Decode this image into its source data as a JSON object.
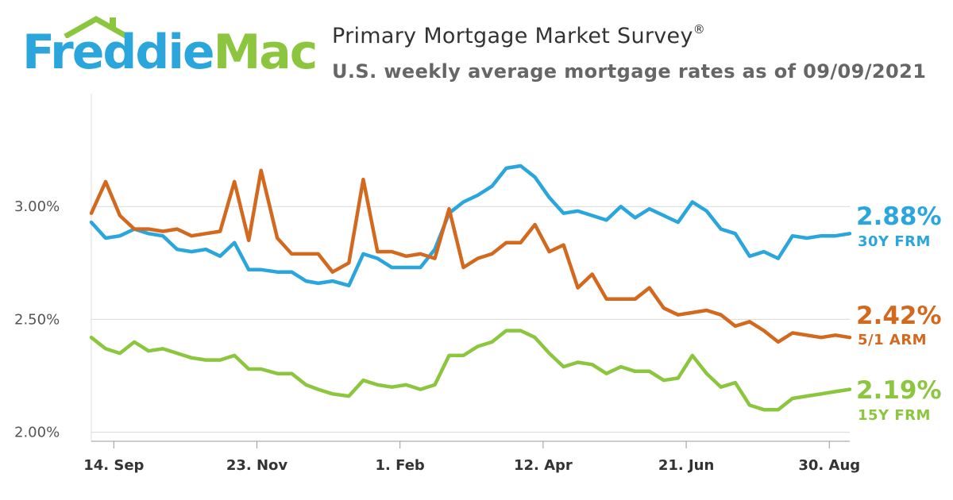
{
  "header": {
    "logo_part1": "Freddie",
    "logo_part2": "Mac",
    "title": "Primary Mortgage Market Survey",
    "title_mark": "®",
    "subtitle": "U.S. weekly average mortgage rates as of 09/09/2021"
  },
  "colors": {
    "frm30": "#2aa6dd",
    "arm51": "#d2691e",
    "frm15": "#8cc63f",
    "grid": "#d9d9d9",
    "axis": "#999999"
  },
  "chart_data": {
    "type": "line",
    "title": "Primary Mortgage Market Survey",
    "subtitle": "U.S. weekly average mortgage rates as of 09/09/2021",
    "xlabel": "",
    "ylabel": "",
    "ylim": [
      1.96,
      3.5
    ],
    "yticks": [
      2.0,
      2.5,
      3.0
    ],
    "ytick_labels": [
      "2.00%",
      "2.50%",
      "3.00%"
    ],
    "grid": true,
    "legend": "right end labels",
    "x_range": [
      "2020-09-03",
      "2021-09-09"
    ],
    "xticks": [
      {
        "date": "2020-09-14",
        "label": "14. Sep"
      },
      {
        "date": "2020-11-23",
        "label": "23. Nov"
      },
      {
        "date": "2021-02-01",
        "label": "1. Feb"
      },
      {
        "date": "2021-04-12",
        "label": "12. Apr"
      },
      {
        "date": "2021-06-21",
        "label": "21. Jun"
      },
      {
        "date": "2021-08-30",
        "label": "30. Aug"
      }
    ],
    "x": [
      "2020-09-03",
      "2020-09-10",
      "2020-09-17",
      "2020-09-24",
      "2020-10-01",
      "2020-10-08",
      "2020-10-15",
      "2020-10-22",
      "2020-10-29",
      "2020-11-05",
      "2020-11-12",
      "2020-11-19",
      "2020-11-25",
      "2020-12-03",
      "2020-12-10",
      "2020-12-17",
      "2020-12-23",
      "2020-12-30",
      "2021-01-07",
      "2021-01-14",
      "2021-01-21",
      "2021-01-28",
      "2021-02-04",
      "2021-02-11",
      "2021-02-18",
      "2021-02-25",
      "2021-03-04",
      "2021-03-11",
      "2021-03-18",
      "2021-03-25",
      "2021-04-01",
      "2021-04-08",
      "2021-04-15",
      "2021-04-22",
      "2021-04-29",
      "2021-05-06",
      "2021-05-13",
      "2021-05-20",
      "2021-05-27",
      "2021-06-03",
      "2021-06-10",
      "2021-06-17",
      "2021-06-24",
      "2021-07-01",
      "2021-07-08",
      "2021-07-15",
      "2021-07-22",
      "2021-07-29",
      "2021-08-05",
      "2021-08-12",
      "2021-08-19",
      "2021-08-26",
      "2021-09-02",
      "2021-09-09"
    ],
    "series": [
      {
        "name": "30Y FRM",
        "key": "frm30",
        "end_label": "2.88%",
        "values": [
          2.93,
          2.86,
          2.87,
          2.9,
          2.88,
          2.87,
          2.81,
          2.8,
          2.81,
          2.78,
          2.84,
          2.72,
          2.72,
          2.71,
          2.71,
          2.67,
          2.66,
          2.67,
          2.65,
          2.79,
          2.77,
          2.73,
          2.73,
          2.73,
          2.81,
          2.97,
          3.02,
          3.05,
          3.09,
          3.17,
          3.18,
          3.13,
          3.04,
          2.97,
          2.98,
          2.96,
          2.94,
          3.0,
          2.95,
          2.99,
          2.96,
          2.93,
          3.02,
          2.98,
          2.9,
          2.88,
          2.78,
          2.8,
          2.77,
          2.87,
          2.86,
          2.87,
          2.87,
          2.88
        ]
      },
      {
        "name": "5/1 ARM",
        "key": "arm51",
        "end_label": "2.42%",
        "values": [
          2.97,
          3.11,
          2.96,
          2.9,
          2.9,
          2.89,
          2.9,
          2.87,
          2.88,
          2.89,
          3.11,
          2.85,
          3.16,
          2.86,
          2.79,
          2.79,
          2.79,
          2.71,
          2.75,
          3.12,
          2.8,
          2.8,
          2.78,
          2.79,
          2.77,
          2.99,
          2.73,
          2.77,
          2.79,
          2.84,
          2.84,
          2.92,
          2.8,
          2.83,
          2.64,
          2.7,
          2.59,
          2.59,
          2.59,
          2.64,
          2.55,
          2.52,
          2.53,
          2.54,
          2.52,
          2.47,
          2.49,
          2.45,
          2.4,
          2.44,
          2.43,
          2.42,
          2.43,
          2.42
        ]
      },
      {
        "name": "15Y FRM",
        "key": "frm15",
        "end_label": "2.19%",
        "values": [
          2.42,
          2.37,
          2.35,
          2.4,
          2.36,
          2.37,
          2.35,
          2.33,
          2.32,
          2.32,
          2.34,
          2.28,
          2.28,
          2.26,
          2.26,
          2.21,
          2.19,
          2.17,
          2.16,
          2.23,
          2.21,
          2.2,
          2.21,
          2.19,
          2.21,
          2.34,
          2.34,
          2.38,
          2.4,
          2.45,
          2.45,
          2.42,
          2.35,
          2.29,
          2.31,
          2.3,
          2.26,
          2.29,
          2.27,
          2.27,
          2.23,
          2.24,
          2.34,
          2.26,
          2.2,
          2.22,
          2.12,
          2.1,
          2.1,
          2.15,
          2.16,
          2.17,
          2.18,
          2.19
        ]
      }
    ]
  }
}
